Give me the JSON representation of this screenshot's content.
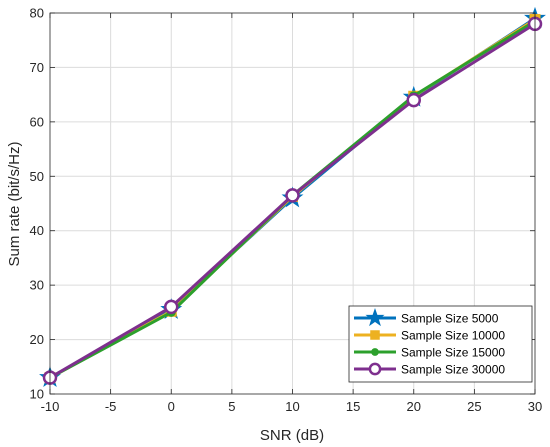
{
  "chart_data": {
    "type": "line",
    "xlabel": "SNR (dB)",
    "ylabel": "Sum rate (bit/s/Hz)",
    "xlim": [
      -10,
      30
    ],
    "ylim": [
      10,
      80
    ],
    "xticks": [
      -10,
      -5,
      0,
      5,
      10,
      15,
      20,
      25,
      30
    ],
    "yticks": [
      10,
      20,
      30,
      40,
      50,
      60,
      70,
      80
    ],
    "grid": true,
    "legend_position": "bottom-right",
    "x": [
      -10,
      0,
      10,
      20,
      30
    ],
    "series": [
      {
        "name": "Sample Size 5000",
        "values": [
          13.0,
          25.5,
          46.0,
          64.5,
          79.0
        ],
        "color": "#0072BD",
        "marker": "star"
      },
      {
        "name": "Sample Size 10000",
        "values": [
          13.0,
          25.2,
          46.3,
          64.7,
          78.8
        ],
        "color": "#EDB120",
        "marker": "square"
      },
      {
        "name": "Sample Size 15000",
        "values": [
          13.0,
          25.0,
          46.5,
          64.8,
          78.5
        ],
        "color": "#2CA02C",
        "marker": "circle-filled"
      },
      {
        "name": "Sample Size 30000",
        "values": [
          13.0,
          26.0,
          46.5,
          64.0,
          78.0
        ],
        "color": "#7E2F8E",
        "marker": "circle-open"
      }
    ]
  }
}
